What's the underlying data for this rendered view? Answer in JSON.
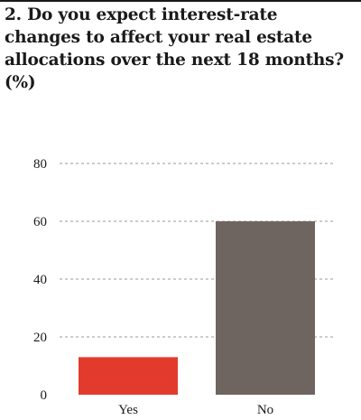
{
  "title": "2. Do you expect interest-rate changes to affect your real estate allocations over the next 18 months? (%)",
  "colors": {
    "yes": "#e23b2e",
    "no": "#6f6560",
    "grid": "#9a9a9a"
  },
  "chart_data": {
    "type": "bar",
    "title": "2. Do you expect interest-rate changes to affect your real estate allocations over the next 18 months? (%)",
    "categories": [
      "Yes",
      "No"
    ],
    "values": [
      13,
      60
    ],
    "ylim": [
      0,
      80
    ],
    "yticks": [
      0,
      20,
      40,
      60,
      80
    ],
    "grid": true,
    "xlabel": "",
    "ylabel": ""
  }
}
